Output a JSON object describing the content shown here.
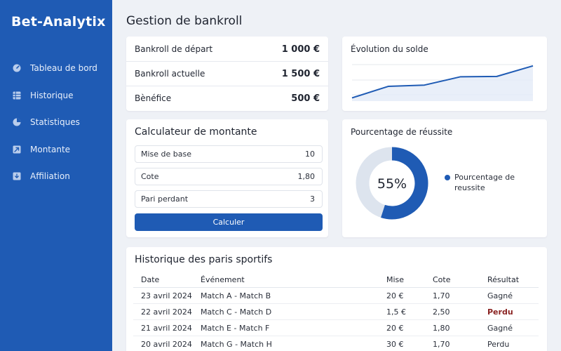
{
  "brand": "Bet-Analytix",
  "nav": [
    {
      "label": "Tableau de bord",
      "icon": "gauge-icon"
    },
    {
      "label": "Historique",
      "icon": "table-icon"
    },
    {
      "label": "Statistiques",
      "icon": "pie-chart-icon"
    },
    {
      "label": "Montante",
      "icon": "trend-up-icon"
    },
    {
      "label": "Affiliation",
      "icon": "download-icon"
    }
  ],
  "page_title": "Gestion de bankroll",
  "bankroll": {
    "rows": [
      {
        "label": "Bankroll de départ",
        "value": "1 000 €"
      },
      {
        "label": "Bankroll actuelle",
        "value": "1 500 €"
      },
      {
        "label": "Bènéfice",
        "value": "500 €"
      }
    ]
  },
  "evolution": {
    "title": "Évolution du solde",
    "chart_data": {
      "type": "area",
      "x": [
        1,
        2,
        3,
        4,
        5,
        6
      ],
      "values": [
        1000,
        1180,
        1200,
        1330,
        1335,
        1500
      ],
      "grid": true
    }
  },
  "calculator": {
    "title": "Calculateur de montante",
    "fields": [
      {
        "label": "Mise de base",
        "value": "10"
      },
      {
        "label": "Cote",
        "value": "1,80"
      },
      {
        "label": "Pari perdant",
        "value": "3"
      }
    ],
    "button": "Calculer"
  },
  "success": {
    "title": "Pourcentage de réussite",
    "center_label": "55%",
    "legend": "Pourcentage de reussite",
    "chart_data": {
      "type": "pie",
      "values": [
        55,
        45
      ],
      "colors": [
        "#1f5bb4",
        "#dde4ee"
      ]
    }
  },
  "history": {
    "title": "Historique des paris sportifs",
    "columns": [
      "Date",
      "Événement",
      "Mise",
      "Cote",
      "Résultat"
    ],
    "rows": [
      {
        "date": "23 avril 2024",
        "event": "Match A - Match B",
        "mise": "20 €",
        "cote": "1,70",
        "result": "Gagné",
        "lost": false
      },
      {
        "date": "22 avril 2024",
        "event": "Match C - Match D",
        "mise": "1,5 €",
        "cote": "2,50",
        "result": "Perdu",
        "lost": true
      },
      {
        "date": "21 avril 2024",
        "event": "Match E - Match F",
        "mise": "20 €",
        "cote": "1,80",
        "result": "Gagné",
        "lost": false
      },
      {
        "date": "20 avril 2024",
        "event": "Match G - Match H",
        "mise": "30 €",
        "cote": "1,70",
        "result": "Perdu",
        "lost": false
      }
    ]
  },
  "colors": {
    "accent": "#1f5bb4",
    "lost": "#8a2322"
  }
}
